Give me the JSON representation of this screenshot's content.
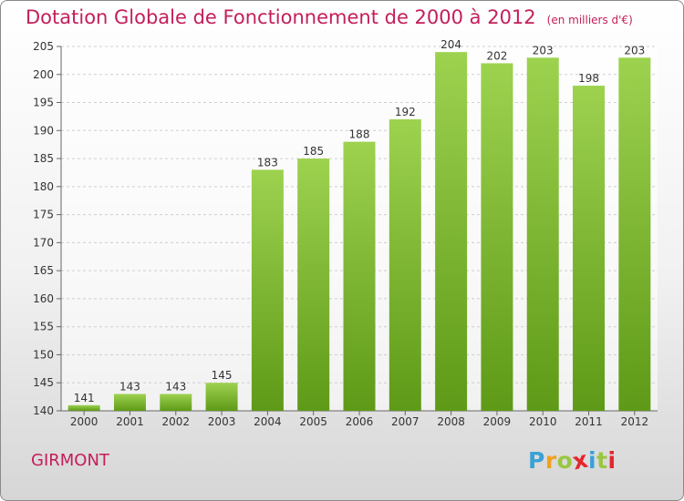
{
  "header": {
    "title": "Dotation Globale de Fonctionnement de 2000 à 2012",
    "unit": "(en milliers d'€)"
  },
  "footer": {
    "municipality": "GIRMONT",
    "logo_letters": [
      "P",
      "r",
      "o",
      "x",
      "i",
      "t",
      "i"
    ],
    "logo_colors": [
      "#3aa1d7",
      "#f0a21b",
      "#9ac73f",
      "#e5262b",
      "#3aa1d7",
      "#9ac73f",
      "#e5262b"
    ]
  },
  "colors": {
    "title": "#c41e5a",
    "bar_top": "#9dd24f",
    "bar_bottom": "#5e9a17",
    "grid": "#cfcfcf",
    "axis": "#666666"
  },
  "chart_data": {
    "type": "bar",
    "categories": [
      "2000",
      "2001",
      "2002",
      "2003",
      "2004",
      "2005",
      "2006",
      "2007",
      "2008",
      "2009",
      "2010",
      "2011",
      "2012"
    ],
    "values": [
      141,
      143,
      143,
      145,
      183,
      185,
      188,
      192,
      204,
      202,
      203,
      198,
      203
    ],
    "ylim": [
      140,
      205
    ],
    "yticks": [
      140,
      145,
      150,
      155,
      160,
      165,
      170,
      175,
      180,
      185,
      190,
      195,
      200,
      205
    ],
    "grid": "horizontal dashed",
    "data_labels": true
  }
}
